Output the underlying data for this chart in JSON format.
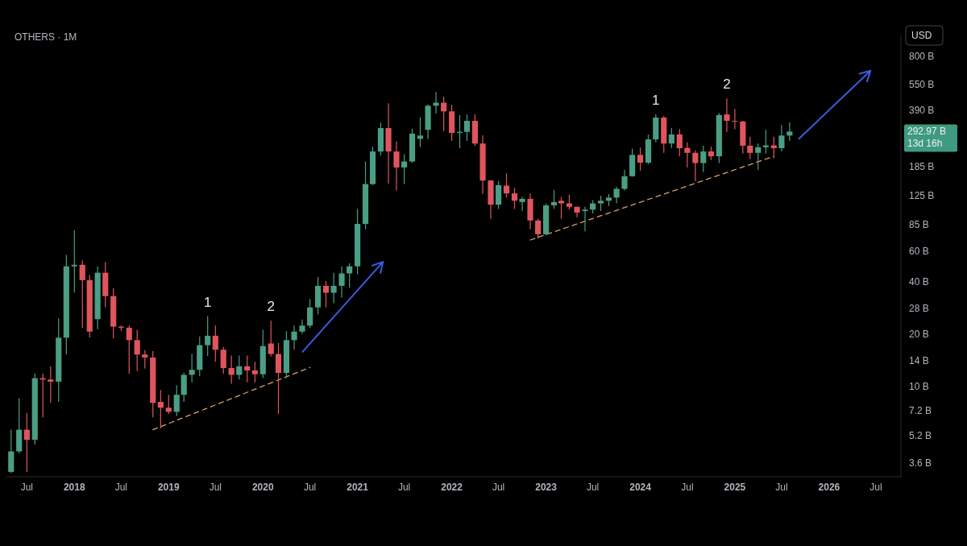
{
  "chart_data": {
    "type": "candlestick",
    "title": "OTHERS · 1M",
    "x": [
      "2017-05",
      "2017-06",
      "2017-07",
      "2017-08",
      "2017-09",
      "2017-10",
      "2017-11",
      "2017-12",
      "2018-01",
      "2018-02",
      "2018-03",
      "2018-04",
      "2018-05",
      "2018-06",
      "2018-07",
      "2018-08",
      "2018-09",
      "2018-10",
      "2018-11",
      "2018-12",
      "2019-01",
      "2019-02",
      "2019-03",
      "2019-04",
      "2019-05",
      "2019-06",
      "2019-07",
      "2019-08",
      "2019-09",
      "2019-10",
      "2019-11",
      "2019-12",
      "2020-01",
      "2020-02",
      "2020-03",
      "2020-04",
      "2020-05",
      "2020-06",
      "2020-07",
      "2020-08",
      "2020-09",
      "2020-10",
      "2020-11",
      "2020-12",
      "2021-01",
      "2021-02",
      "2021-03",
      "2021-04",
      "2021-05",
      "2021-06",
      "2021-07",
      "2021-08",
      "2021-09",
      "2021-10",
      "2021-11",
      "2021-12",
      "2022-01",
      "2022-02",
      "2022-03",
      "2022-04",
      "2022-05",
      "2022-06",
      "2022-07",
      "2022-08",
      "2022-09",
      "2022-10",
      "2022-11",
      "2022-12",
      "2023-01",
      "2023-02",
      "2023-03",
      "2023-04",
      "2023-05",
      "2023-06",
      "2023-07",
      "2023-08",
      "2023-09",
      "2023-10",
      "2023-11",
      "2023-12",
      "2024-01",
      "2024-02",
      "2024-03",
      "2024-04",
      "2024-05",
      "2024-06",
      "2024-07",
      "2024-08",
      "2024-09",
      "2024-10",
      "2024-11",
      "2024-12",
      "2025-01",
      "2025-02",
      "2025-03",
      "2025-04",
      "2025-05",
      "2025-06",
      "2025-07",
      "2025-08"
    ],
    "ohlc": [
      [
        3.2,
        5.6,
        3.15,
        4.2
      ],
      [
        4.2,
        8.5,
        4.1,
        5.6
      ],
      [
        5.6,
        7.0,
        3.2,
        4.9
      ],
      [
        4.9,
        11.8,
        4.6,
        11.1
      ],
      [
        11.1,
        11.8,
        6.6,
        10.9
      ],
      [
        10.9,
        13,
        8,
        10.6
      ],
      [
        10.6,
        24.6,
        8.1,
        19
      ],
      [
        19,
        57,
        15.2,
        49
      ],
      [
        49,
        79,
        34.6,
        50
      ],
      [
        50,
        53,
        21.6,
        40.8
      ],
      [
        40.8,
        43.6,
        19,
        20.6
      ],
      [
        24.3,
        49,
        21.3,
        45
      ],
      [
        45,
        52,
        28.5,
        33
      ],
      [
        33,
        36.6,
        18.8,
        22
      ],
      [
        22,
        22.3,
        20.8,
        21.7
      ],
      [
        21.7,
        22.3,
        11.8,
        18.4
      ],
      [
        18.4,
        21.1,
        12.2,
        15.2
      ],
      [
        15.2,
        16.1,
        12.6,
        14.6
      ],
      [
        14.6,
        15.9,
        6.6,
        8
      ],
      [
        8.1,
        9.5,
        5.7,
        7.5
      ],
      [
        7.5,
        8.9,
        6.9,
        7.1
      ],
      [
        7.1,
        10.1,
        6.7,
        8.9
      ],
      [
        8.9,
        11.9,
        8.1,
        11.6
      ],
      [
        11.6,
        15.3,
        10.5,
        12.4
      ],
      [
        12.4,
        19.3,
        11.4,
        17.2
      ],
      [
        17.2,
        25.3,
        14.9,
        19.5
      ],
      [
        19.5,
        22.3,
        13.8,
        16.2
      ],
      [
        16.2,
        16.8,
        11.8,
        12.7
      ],
      [
        12.7,
        15,
        10.3,
        11.6
      ],
      [
        11.6,
        15,
        10.9,
        13
      ],
      [
        13,
        15,
        10.5,
        12.3
      ],
      [
        12.3,
        13.8,
        10.5,
        11.7
      ],
      [
        11.7,
        21.1,
        11.1,
        17
      ],
      [
        17.6,
        23.8,
        14.8,
        15.3
      ],
      [
        15.3,
        17.7,
        6.9,
        11.9
      ],
      [
        11.9,
        20.7,
        11.1,
        18.4
      ],
      [
        18.4,
        22.3,
        16.2,
        20.6
      ],
      [
        20.6,
        24.2,
        20,
        22.3
      ],
      [
        22.3,
        31.8,
        21.7,
        28.4
      ],
      [
        28.4,
        42.5,
        25.9,
        37.8
      ],
      [
        37.8,
        40.4,
        28.4,
        34.5
      ],
      [
        34.5,
        45,
        30,
        37.8
      ],
      [
        37.8,
        49,
        32.4,
        44.6
      ],
      [
        44.6,
        51,
        36.9,
        49
      ],
      [
        49,
        105,
        44,
        86
      ],
      [
        86,
        197,
        80,
        146
      ],
      [
        146,
        240,
        144,
        225
      ],
      [
        225,
        330,
        214,
        307
      ],
      [
        307,
        427,
        147,
        225
      ],
      [
        225,
        257,
        134,
        182
      ],
      [
        182,
        217,
        146,
        197
      ],
      [
        197,
        305,
        194,
        285
      ],
      [
        266,
        353,
        239,
        278
      ],
      [
        300,
        420,
        266,
        413
      ],
      [
        413,
        495,
        372,
        430
      ],
      [
        430,
        466,
        295,
        383
      ],
      [
        383,
        418,
        259,
        288
      ],
      [
        288,
        365,
        235,
        292
      ],
      [
        292,
        368,
        259,
        338
      ],
      [
        338,
        368,
        242,
        250
      ],
      [
        250,
        278,
        128,
        153
      ],
      [
        153,
        154,
        92,
        111
      ],
      [
        111,
        152,
        105,
        144
      ],
      [
        143,
        168,
        122,
        129
      ],
      [
        129,
        139,
        105,
        117
      ],
      [
        115,
        123,
        102,
        120
      ],
      [
        120,
        129,
        80,
        90
      ],
      [
        90,
        92,
        70.6,
        75
      ],
      [
        75,
        113,
        74,
        110
      ],
      [
        110,
        135,
        105,
        115
      ],
      [
        117,
        123,
        92,
        113
      ],
      [
        113,
        127,
        104,
        108
      ],
      [
        108,
        108,
        94,
        100
      ],
      [
        102,
        108,
        78,
        104
      ],
      [
        104,
        118,
        99,
        113
      ],
      [
        113,
        125,
        102,
        117
      ],
      [
        117,
        128,
        109,
        122
      ],
      [
        122,
        141,
        113,
        137
      ],
      [
        137,
        176,
        134,
        162
      ],
      [
        162,
        233,
        161,
        215
      ],
      [
        215,
        237,
        174,
        194
      ],
      [
        194,
        282,
        190,
        264
      ],
      [
        264,
        368,
        254,
        353
      ],
      [
        353,
        360,
        221,
        250
      ],
      [
        250,
        307,
        236,
        282
      ],
      [
        282,
        303,
        211,
        235
      ],
      [
        236,
        254,
        182,
        221
      ],
      [
        221,
        228,
        152,
        193
      ],
      [
        193,
        243,
        171,
        225
      ],
      [
        225,
        240,
        201,
        211
      ],
      [
        211,
        374,
        193,
        365
      ],
      [
        368,
        455,
        292,
        338
      ],
      [
        338,
        396,
        303,
        335
      ],
      [
        335,
        338,
        219,
        243
      ],
      [
        243,
        274,
        203,
        221
      ],
      [
        221,
        250,
        176,
        238
      ],
      [
        238,
        300,
        219,
        244
      ],
      [
        244,
        274,
        206,
        235
      ],
      [
        235,
        320,
        225,
        278
      ],
      [
        278,
        331,
        259,
        292.97
      ]
    ],
    "colors": [
      "#4a9e85",
      "#4a9e85",
      "#e0555d",
      "#4a9e85",
      "#e0555d",
      "#e0555d",
      "#4a9e85",
      "#4a9e85",
      "#4a9e85",
      "#e0555d",
      "#e0555d",
      "#4a9e85",
      "#e0555d",
      "#e0555d",
      "#e0555d",
      "#e0555d",
      "#e0555d",
      "#e0555d",
      "#e0555d",
      "#e0555d",
      "#e0555d",
      "#4a9e85",
      "#4a9e85",
      "#4a9e85",
      "#4a9e85",
      "#4a9e85",
      "#e0555d",
      "#e0555d",
      "#e0555d",
      "#4a9e85",
      "#e0555d",
      "#e0555d",
      "#4a9e85",
      "#e0555d",
      "#e0555d",
      "#4a9e85",
      "#4a9e85",
      "#4a9e85",
      "#4a9e85",
      "#4a9e85",
      "#e0555d",
      "#4a9e85",
      "#4a9e85",
      "#4a9e85",
      "#4a9e85",
      "#4a9e85",
      "#4a9e85",
      "#4a9e85",
      "#e0555d",
      "#e0555d",
      "#4a9e85",
      "#4a9e85",
      "#4a9e85",
      "#4a9e85",
      "#4a9e85",
      "#e0555d",
      "#e0555d",
      "#4a9e85",
      "#4a9e85",
      "#e0555d",
      "#e0555d",
      "#e0555d",
      "#4a9e85",
      "#e0555d",
      "#e0555d",
      "#4a9e85",
      "#e0555d",
      "#e0555d",
      "#4a9e85",
      "#4a9e85",
      "#e0555d",
      "#e0555d",
      "#e0555d",
      "#4a9e85",
      "#4a9e85",
      "#4a9e85",
      "#4a9e85",
      "#4a9e85",
      "#4a9e85",
      "#4a9e85",
      "#e0555d",
      "#4a9e85",
      "#4a9e85",
      "#e0555d",
      "#4a9e85",
      "#e0555d",
      "#e0555d",
      "#e0555d",
      "#4a9e85",
      "#e0555d",
      "#4a9e85",
      "#e0555d",
      "#e0555d",
      "#e0555d",
      "#e0555d",
      "#4a9e85",
      "#4a9e85",
      "#e0555d",
      "#4a9e85",
      "#4a9e85"
    ],
    "series": [
      {
        "type": "line",
        "x": [
          "2018-11",
          "2020-07"
        ],
        "values": [
          5.6,
          12.8
        ],
        "color": "#d9a066",
        "line_style": "dashed"
      },
      {
        "type": "line",
        "x": [
          "2022-11",
          "2025-06"
        ],
        "values": [
          69.5,
          211
        ],
        "color": "#d9a066",
        "line_style": "dashed"
      }
    ],
    "log": true,
    "ylim": [
      3.0,
      1050
    ],
    "yticks": [
      {
        "value": 800,
        "label": "800 B"
      },
      {
        "value": 550,
        "label": "550 B"
      },
      {
        "value": 390,
        "label": "390 B"
      },
      {
        "value": 185,
        "label": "185 B"
      },
      {
        "value": 125,
        "label": "125 B"
      },
      {
        "value": 85,
        "label": "85 B"
      },
      {
        "value": 60,
        "label": "60 B"
      },
      {
        "value": 40,
        "label": "40 B"
      },
      {
        "value": 28,
        "label": "28 B"
      },
      {
        "value": 20,
        "label": "20 B"
      },
      {
        "value": 14,
        "label": "14 B"
      },
      {
        "value": 10,
        "label": "10 B"
      },
      {
        "value": 7.2,
        "label": "7.2 B"
      },
      {
        "value": 5.2,
        "label": "5.2 B"
      },
      {
        "value": 3.6,
        "label": "3.6 B"
      }
    ],
    "xlim": [
      "2017-04-13",
      "2026-10-06"
    ],
    "xticks": [
      {
        "value": "2017-07",
        "label": "Jul"
      },
      {
        "value": "2018-01",
        "label": "2018"
      },
      {
        "value": "2018-07",
        "label": "Jul"
      },
      {
        "value": "2019-01",
        "label": "2019"
      },
      {
        "value": "2019-07",
        "label": "Jul"
      },
      {
        "value": "2020-01",
        "label": "2020"
      },
      {
        "value": "2020-07",
        "label": "Jul"
      },
      {
        "value": "2021-01",
        "label": "2021"
      },
      {
        "value": "2021-07",
        "label": "Jul"
      },
      {
        "value": "2022-01",
        "label": "2022"
      },
      {
        "value": "2022-07",
        "label": "Jul"
      },
      {
        "value": "2023-01",
        "label": "2023"
      },
      {
        "value": "2023-07",
        "label": "Jul"
      },
      {
        "value": "2024-01",
        "label": "2024"
      },
      {
        "value": "2024-07",
        "label": "Jul"
      },
      {
        "value": "2025-01",
        "label": "2025"
      },
      {
        "value": "2025-07",
        "label": "Jul"
      },
      {
        "value": "2026-01",
        "label": "2026"
      },
      {
        "value": "2026-07",
        "label": "Jul"
      }
    ],
    "annotations": [
      "USD",
      "292.97 B",
      "13d 16h",
      {
        "text": "1",
        "x": "2019-06",
        "y": 25.3
      },
      {
        "text": "2",
        "x": "2020-02",
        "y": 23.8
      },
      {
        "text": "1",
        "x": "2024-03",
        "y": 368
      },
      {
        "text": "2",
        "x": "2024-12",
        "y": 455
      }
    ]
  }
}
